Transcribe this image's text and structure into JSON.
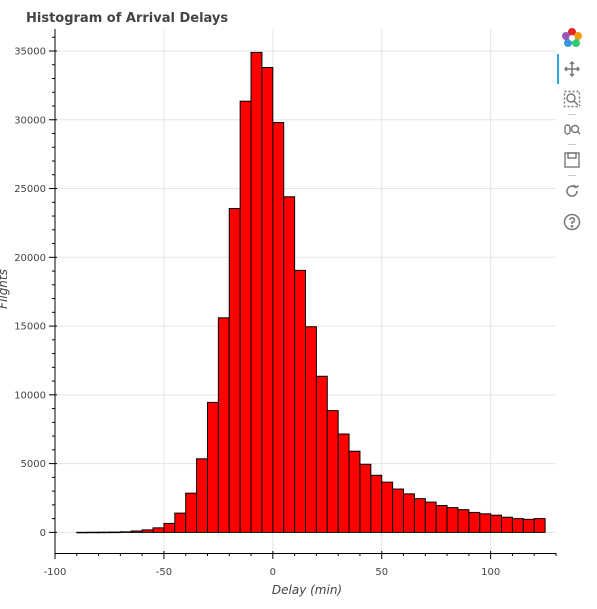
{
  "toolbar": {
    "tools": [
      {
        "name": "bokeh-logo-icon"
      },
      {
        "name": "pan-icon",
        "active": true
      },
      {
        "name": "box-zoom-icon"
      },
      {
        "name": "wheel-zoom-icon"
      },
      {
        "name": "save-icon"
      },
      {
        "name": "reset-icon"
      },
      {
        "name": "help-icon"
      }
    ],
    "colors": {
      "active": "#26aae1",
      "icon": "#777777"
    }
  },
  "chart_data": {
    "type": "bar",
    "title": "Histogram of Arrival Delays",
    "xlabel": "Delay (min)",
    "ylabel": "Flights",
    "xlim": [
      -100,
      130
    ],
    "ylim": [
      -1500,
      36600
    ],
    "xticks": [
      "-100",
      "-50",
      "0",
      "50",
      "100"
    ],
    "xtick_values": [
      -100,
      -50,
      0,
      50,
      100
    ],
    "yticks": [
      "0",
      "5000",
      "10000",
      "15000",
      "20000",
      "25000",
      "30000",
      "35000"
    ],
    "ytick_values": [
      0,
      5000,
      10000,
      15000,
      20000,
      25000,
      30000,
      35000
    ],
    "grid": true,
    "bar_color": "#ff0000",
    "edge_color": "#000000",
    "bins": [
      {
        "left": -90,
        "right": -85,
        "value": 5
      },
      {
        "left": -85,
        "right": -80,
        "value": 10
      },
      {
        "left": -80,
        "right": -75,
        "value": 15
      },
      {
        "left": -75,
        "right": -70,
        "value": 20
      },
      {
        "left": -70,
        "right": -65,
        "value": 40
      },
      {
        "left": -65,
        "right": -60,
        "value": 100
      },
      {
        "left": -60,
        "right": -55,
        "value": 180
      },
      {
        "left": -55,
        "right": -50,
        "value": 330
      },
      {
        "left": -50,
        "right": -45,
        "value": 650
      },
      {
        "left": -45,
        "right": -40,
        "value": 1400
      },
      {
        "left": -40,
        "right": -35,
        "value": 2850
      },
      {
        "left": -35,
        "right": -30,
        "value": 5350
      },
      {
        "left": -30,
        "right": -25,
        "value": 9450
      },
      {
        "left": -25,
        "right": -20,
        "value": 15600
      },
      {
        "left": -20,
        "right": -15,
        "value": 23550
      },
      {
        "left": -15,
        "right": -10,
        "value": 31350
      },
      {
        "left": -10,
        "right": -5,
        "value": 34900
      },
      {
        "left": -5,
        "right": 0,
        "value": 33800
      },
      {
        "left": 0,
        "right": 5,
        "value": 29800
      },
      {
        "left": 5,
        "right": 10,
        "value": 24400
      },
      {
        "left": 10,
        "right": 15,
        "value": 19050
      },
      {
        "left": 15,
        "right": 20,
        "value": 14950
      },
      {
        "left": 20,
        "right": 25,
        "value": 11350
      },
      {
        "left": 25,
        "right": 30,
        "value": 8850
      },
      {
        "left": 30,
        "right": 35,
        "value": 7150
      },
      {
        "left": 35,
        "right": 40,
        "value": 5900
      },
      {
        "left": 40,
        "right": 45,
        "value": 4950
      },
      {
        "left": 45,
        "right": 50,
        "value": 4150
      },
      {
        "left": 50,
        "right": 55,
        "value": 3650
      },
      {
        "left": 55,
        "right": 60,
        "value": 3150
      },
      {
        "left": 60,
        "right": 65,
        "value": 2800
      },
      {
        "left": 65,
        "right": 70,
        "value": 2450
      },
      {
        "left": 70,
        "right": 75,
        "value": 2200
      },
      {
        "left": 75,
        "right": 80,
        "value": 1950
      },
      {
        "left": 80,
        "right": 85,
        "value": 1800
      },
      {
        "left": 85,
        "right": 90,
        "value": 1650
      },
      {
        "left": 90,
        "right": 95,
        "value": 1450
      },
      {
        "left": 95,
        "right": 100,
        "value": 1350
      },
      {
        "left": 100,
        "right": 105,
        "value": 1250
      },
      {
        "left": 105,
        "right": 110,
        "value": 1100
      },
      {
        "left": 110,
        "right": 115,
        "value": 1000
      },
      {
        "left": 115,
        "right": 120,
        "value": 950
      },
      {
        "left": 120,
        "right": 125,
        "value": 1000
      }
    ]
  }
}
